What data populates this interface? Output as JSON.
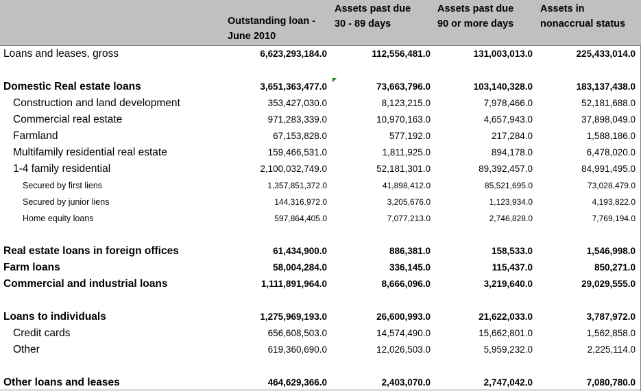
{
  "header": {
    "col1": [
      "Outstanding loan -",
      "June 2010"
    ],
    "col2": [
      "Assets past due",
      "30 - 89 days"
    ],
    "col3": [
      "Assets past due",
      "90 or more days"
    ],
    "col4": [
      "Assets in",
      "nonaccrual status"
    ]
  },
  "rows": [
    {
      "label": "Loans and leases, gross",
      "v": [
        "6,623,293,184.0",
        "112,556,481.0",
        "131,003,013.0",
        "225,433,014.0"
      ]
    },
    {
      "label": "Domestic Real estate loans",
      "v": [
        "3,651,363,477.0",
        "73,663,796.0",
        "103,140,328.0",
        "183,137,438.0"
      ]
    },
    {
      "label": "Construction and land development",
      "v": [
        "353,427,030.0",
        "8,123,215.0",
        "7,978,466.0",
        "52,181,688.0"
      ]
    },
    {
      "label": "Commercial real estate",
      "v": [
        "971,283,339.0",
        "10,970,163.0",
        "4,657,943.0",
        "37,898,049.0"
      ]
    },
    {
      "label": "Farmland",
      "v": [
        "67,153,828.0",
        "577,192.0",
        "217,284.0",
        "1,588,186.0"
      ]
    },
    {
      "label": "Multifamily residential real estate",
      "v": [
        "159,466,531.0",
        "1,811,925.0",
        "894,178.0",
        "6,478,020.0"
      ]
    },
    {
      "label": "1-4 family residential",
      "v": [
        "2,100,032,749.0",
        "52,181,301.0",
        "89,392,457.0",
        "84,991,495.0"
      ]
    },
    {
      "label": "Secured by first liens",
      "v": [
        "1,357,851,372.0",
        "41,898,412.0",
        "85,521,695.0",
        "73,028,479.0"
      ]
    },
    {
      "label": "Secured by junior liens",
      "v": [
        "144,316,972.0",
        "3,205,676.0",
        "1,123,934.0",
        "4,193,822.0"
      ]
    },
    {
      "label": "Home equity loans",
      "v": [
        "597,864,405.0",
        "7,077,213.0",
        "2,746,828.0",
        "7,769,194.0"
      ]
    },
    {
      "label": "Real estate loans in foreign offices",
      "v": [
        "61,434,900.0",
        "886,381.0",
        "158,533.0",
        "1,546,998.0"
      ]
    },
    {
      "label": "Farm loans",
      "v": [
        "58,004,284.0",
        "336,145.0",
        "115,437.0",
        "850,271.0"
      ]
    },
    {
      "label": "Commercial and industrial loans",
      "v": [
        "1,111,891,964.0",
        "8,666,096.0",
        "3,219,640.0",
        "29,029,555.0"
      ]
    },
    {
      "label": "Loans to individuals",
      "v": [
        "1,275,969,193.0",
        "26,600,993.0",
        "21,622,033.0",
        "3,787,972.0"
      ]
    },
    {
      "label": "Credit cards",
      "v": [
        "656,608,503.0",
        "14,574,490.0",
        "15,662,801.0",
        "1,562,858.0"
      ]
    },
    {
      "label": "Other",
      "v": [
        "619,360,690.0",
        "12,026,503.0",
        "5,959,232.0",
        "2,225,114.0"
      ]
    },
    {
      "label": "Other loans and leases",
      "v": [
        "464,629,366.0",
        "2,403,070.0",
        "2,747,042.0",
        "7,080,780.0"
      ]
    }
  ]
}
